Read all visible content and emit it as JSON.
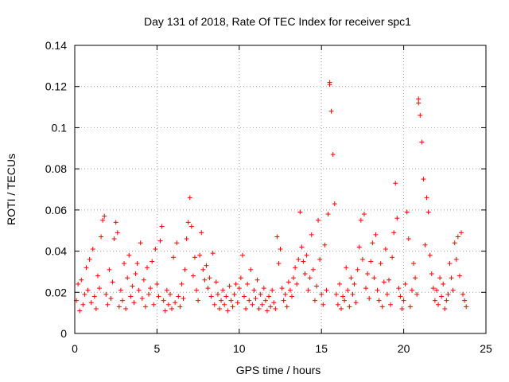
{
  "chart_data": {
    "type": "scatter",
    "title": "Day 131 of 2018, Rate Of TEC Index for receiver spc1",
    "xlabel": "GPS time / hours",
    "ylabel": "ROTI / TECUs",
    "xlim": [
      0,
      25
    ],
    "ylim": [
      0,
      0.14
    ],
    "xticks": [
      0,
      5,
      10,
      15,
      20,
      25
    ],
    "yticks": [
      0,
      0.02,
      0.04,
      0.06,
      0.08,
      0.1,
      0.12,
      0.14
    ],
    "xtick_labels": [
      "0",
      "5",
      "10",
      "15",
      "20",
      "25"
    ],
    "ytick_labels": [
      "0",
      "0.02",
      "0.04",
      "0.06",
      "0.08",
      "0.1",
      "0.12",
      "0.14"
    ],
    "grid": true,
    "marker": "+",
    "series_color": "#ff0000",
    "series": [
      {
        "name": "ROTI",
        "points": [
          [
            0.1,
            0.016
          ],
          [
            0.2,
            0.024
          ],
          [
            0.3,
            0.011
          ],
          [
            0.4,
            0.026
          ],
          [
            0.5,
            0.014
          ],
          [
            0.6,
            0.019
          ],
          [
            0.7,
            0.032
          ],
          [
            0.8,
            0.021
          ],
          [
            0.9,
            0.036
          ],
          [
            1.0,
            0.015
          ],
          [
            1.1,
            0.041
          ],
          [
            1.2,
            0.018
          ],
          [
            1.3,
            0.012
          ],
          [
            1.4,
            0.028
          ],
          [
            1.5,
            0.022
          ],
          [
            1.6,
            0.047
          ],
          [
            1.7,
            0.055
          ],
          [
            1.8,
            0.057
          ],
          [
            1.9,
            0.019
          ],
          [
            2.0,
            0.014
          ],
          [
            2.1,
            0.031
          ],
          [
            2.2,
            0.017
          ],
          [
            2.3,
            0.025
          ],
          [
            2.4,
            0.046
          ],
          [
            2.5,
            0.054
          ],
          [
            2.6,
            0.049
          ],
          [
            2.7,
            0.013
          ],
          [
            2.8,
            0.021
          ],
          [
            2.9,
            0.016
          ],
          [
            3.0,
            0.034
          ],
          [
            3.1,
            0.012
          ],
          [
            3.2,
            0.027
          ],
          [
            3.3,
            0.038
          ],
          [
            3.4,
            0.018
          ],
          [
            3.5,
            0.023
          ],
          [
            3.6,
            0.015
          ],
          [
            3.7,
            0.029
          ],
          [
            3.8,
            0.034
          ],
          [
            3.9,
            0.021
          ],
          [
            4.0,
            0.044
          ],
          [
            4.1,
            0.017
          ],
          [
            4.2,
            0.026
          ],
          [
            4.3,
            0.013
          ],
          [
            4.4,
            0.032
          ],
          [
            4.5,
            0.019
          ],
          [
            4.6,
            0.022
          ],
          [
            4.7,
            0.035
          ],
          [
            4.8,
            0.014
          ],
          [
            4.9,
            0.041
          ],
          [
            5.0,
            0.024
          ],
          [
            5.1,
            0.018
          ],
          [
            5.2,
            0.045
          ],
          [
            5.3,
            0.052
          ],
          [
            5.4,
            0.016
          ],
          [
            5.5,
            0.011
          ],
          [
            5.6,
            0.021
          ],
          [
            5.7,
            0.014
          ],
          [
            5.8,
            0.019
          ],
          [
            5.9,
            0.012
          ],
          [
            6.0,
            0.037
          ],
          [
            6.1,
            0.015
          ],
          [
            6.2,
            0.044
          ],
          [
            6.3,
            0.018
          ],
          [
            6.4,
            0.013
          ],
          [
            6.5,
            0.024
          ],
          [
            6.6,
            0.017
          ],
          [
            6.7,
            0.031
          ],
          [
            6.8,
            0.046
          ],
          [
            6.9,
            0.054
          ],
          [
            7.0,
            0.066
          ],
          [
            7.1,
            0.052
          ],
          [
            7.2,
            0.028
          ],
          [
            7.3,
            0.037
          ],
          [
            7.4,
            0.021
          ],
          [
            7.5,
            0.016
          ],
          [
            7.6,
            0.038
          ],
          [
            7.7,
            0.049
          ],
          [
            7.8,
            0.031
          ],
          [
            7.9,
            0.026
          ],
          [
            8.0,
            0.033
          ],
          [
            8.1,
            0.022
          ],
          [
            8.2,
            0.027
          ],
          [
            8.3,
            0.018
          ],
          [
            8.4,
            0.039
          ],
          [
            8.5,
            0.014
          ],
          [
            8.6,
            0.025
          ],
          [
            8.7,
            0.019
          ],
          [
            8.8,
            0.012
          ],
          [
            8.9,
            0.016
          ],
          [
            9.0,
            0.021
          ],
          [
            9.1,
            0.014
          ],
          [
            9.2,
            0.018
          ],
          [
            9.3,
            0.011
          ],
          [
            9.4,
            0.023
          ],
          [
            9.5,
            0.016
          ],
          [
            9.6,
            0.013
          ],
          [
            9.7,
            0.019
          ],
          [
            9.8,
            0.024
          ],
          [
            9.9,
            0.015
          ],
          [
            10.0,
            0.022
          ],
          [
            10.1,
            0.027
          ],
          [
            10.2,
            0.038
          ],
          [
            10.3,
            0.018
          ],
          [
            10.4,
            0.012
          ],
          [
            10.5,
            0.024
          ],
          [
            10.6,
            0.016
          ],
          [
            10.7,
            0.031
          ],
          [
            10.8,
            0.014
          ],
          [
            10.9,
            0.021
          ],
          [
            11.0,
            0.017
          ],
          [
            11.1,
            0.026
          ],
          [
            11.2,
            0.012
          ],
          [
            11.3,
            0.019
          ],
          [
            11.4,
            0.014
          ],
          [
            11.5,
            0.022
          ],
          [
            11.6,
            0.016
          ],
          [
            11.7,
            0.011
          ],
          [
            11.8,
            0.018
          ],
          [
            11.9,
            0.013
          ],
          [
            12.0,
            0.021
          ],
          [
            12.1,
            0.015
          ],
          [
            12.2,
            0.012
          ],
          [
            12.3,
            0.047
          ],
          [
            12.4,
            0.034
          ],
          [
            12.5,
            0.041
          ],
          [
            12.6,
            0.022
          ],
          [
            12.7,
            0.016
          ],
          [
            12.8,
            0.019
          ],
          [
            12.9,
            0.013
          ],
          [
            13.0,
            0.025
          ],
          [
            13.1,
            0.021
          ],
          [
            13.2,
            0.018
          ],
          [
            13.3,
            0.027
          ],
          [
            13.4,
            0.032
          ],
          [
            13.5,
            0.024
          ],
          [
            13.6,
            0.036
          ],
          [
            13.7,
            0.059
          ],
          [
            13.8,
            0.042
          ],
          [
            13.9,
            0.035
          ],
          [
            14.0,
            0.029
          ],
          [
            14.1,
            0.038
          ],
          [
            14.2,
            0.021
          ],
          [
            14.3,
            0.027
          ],
          [
            14.4,
            0.048
          ],
          [
            14.5,
            0.031
          ],
          [
            14.6,
            0.016
          ],
          [
            14.7,
            0.023
          ],
          [
            14.8,
            0.055
          ],
          [
            14.9,
            0.036
          ],
          [
            15.0,
            0.019
          ],
          [
            15.1,
            0.014
          ],
          [
            15.2,
            0.043
          ],
          [
            15.3,
            0.021
          ],
          [
            15.4,
            0.058
          ],
          [
            15.5,
            0.121
          ],
          [
            15.6,
            0.108
          ],
          [
            15.7,
            0.087
          ],
          [
            15.8,
            0.063
          ],
          [
            15.9,
            0.019
          ],
          [
            16.0,
            0.014
          ],
          [
            16.1,
            0.024
          ],
          [
            16.2,
            0.012
          ],
          [
            16.3,
            0.018
          ],
          [
            16.4,
            0.016
          ],
          [
            16.5,
            0.032
          ],
          [
            16.6,
            0.021
          ],
          [
            16.7,
            0.013
          ],
          [
            16.8,
            0.027
          ],
          [
            16.9,
            0.019
          ],
          [
            17.0,
            0.024
          ],
          [
            17.1,
            0.015
          ],
          [
            17.2,
            0.031
          ],
          [
            17.3,
            0.042
          ],
          [
            17.4,
            0.055
          ],
          [
            17.5,
            0.036
          ],
          [
            17.6,
            0.058
          ],
          [
            17.7,
            0.022
          ],
          [
            17.8,
            0.029
          ],
          [
            17.9,
            0.017
          ],
          [
            18.0,
            0.035
          ],
          [
            18.1,
            0.044
          ],
          [
            18.2,
            0.027
          ],
          [
            18.3,
            0.048
          ],
          [
            18.4,
            0.021
          ],
          [
            18.5,
            0.016
          ],
          [
            18.6,
            0.034
          ],
          [
            18.7,
            0.013
          ],
          [
            18.8,
            0.025
          ],
          [
            18.9,
            0.041
          ],
          [
            19.0,
            0.019
          ],
          [
            19.1,
            0.026
          ],
          [
            19.2,
            0.014
          ],
          [
            19.3,
            0.037
          ],
          [
            19.4,
            0.049
          ],
          [
            19.5,
            0.073
          ],
          [
            19.6,
            0.056
          ],
          [
            19.7,
            0.022
          ],
          [
            19.8,
            0.018
          ],
          [
            19.9,
            0.012
          ],
          [
            20.0,
            0.016
          ],
          [
            20.1,
            0.024
          ],
          [
            20.2,
            0.059
          ],
          [
            20.3,
            0.046
          ],
          [
            20.4,
            0.013
          ],
          [
            20.5,
            0.021
          ],
          [
            20.6,
            0.034
          ],
          [
            20.7,
            0.027
          ],
          [
            20.8,
            0.019
          ],
          [
            20.9,
            0.114
          ],
          [
            21.0,
            0.106
          ],
          [
            21.1,
            0.093
          ],
          [
            21.2,
            0.075
          ],
          [
            21.3,
            0.043
          ],
          [
            21.4,
            0.066
          ],
          [
            21.5,
            0.059
          ],
          [
            21.6,
            0.038
          ],
          [
            21.7,
            0.029
          ],
          [
            21.8,
            0.022
          ],
          [
            21.9,
            0.016
          ],
          [
            22.0,
            0.021
          ],
          [
            22.1,
            0.014
          ],
          [
            22.2,
            0.027
          ],
          [
            22.3,
            0.018
          ],
          [
            22.4,
            0.024
          ],
          [
            22.5,
            0.012
          ],
          [
            22.6,
            0.016
          ],
          [
            22.7,
            0.019
          ],
          [
            22.8,
            0.034
          ],
          [
            22.9,
            0.027
          ],
          [
            23.0,
            0.021
          ],
          [
            23.1,
            0.044
          ],
          [
            23.2,
            0.036
          ],
          [
            23.3,
            0.047
          ],
          [
            23.4,
            0.028
          ],
          [
            23.5,
            0.049
          ],
          [
            23.6,
            0.019
          ],
          [
            23.7,
            0.016
          ],
          [
            23.8,
            0.013
          ],
          [
            15.5,
            0.122
          ],
          [
            20.9,
            0.112
          ]
        ]
      }
    ]
  }
}
